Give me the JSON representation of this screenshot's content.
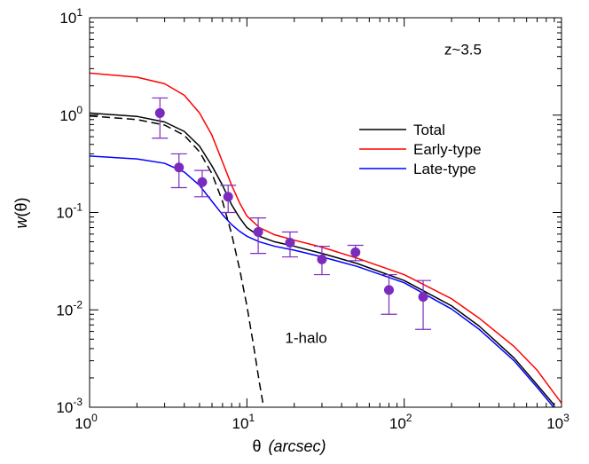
{
  "chart_data": {
    "type": "line",
    "title": "",
    "xlabel": {
      "symbol": "θ",
      "unit": "(arcsec)"
    },
    "ylabel": {
      "main": "w",
      "arg": "(θ)"
    },
    "xscale": "log",
    "yscale": "log",
    "xlim": [
      1,
      1000
    ],
    "ylim": [
      0.001,
      10
    ],
    "x_ticks": [
      {
        "value": 1,
        "base": "10",
        "exp": "0"
      },
      {
        "value": 10,
        "base": "10",
        "exp": "1"
      },
      {
        "value": 100,
        "base": "10",
        "exp": "2"
      },
      {
        "value": 1000,
        "base": "10",
        "exp": "3"
      }
    ],
    "y_ticks": [
      {
        "value": 0.001,
        "base": "10",
        "exp": "-3"
      },
      {
        "value": 0.01,
        "base": "10",
        "exp": "-2"
      },
      {
        "value": 0.1,
        "base": "10",
        "exp": "-1"
      },
      {
        "value": 1,
        "base": "10",
        "exp": "0"
      },
      {
        "value": 10,
        "base": "10",
        "exp": "1"
      }
    ],
    "grid": false,
    "legend_position": "top-right",
    "annotations": [
      {
        "text": "z~3.5",
        "x": 180,
        "y": 4.2
      },
      {
        "text": "1-halo",
        "x": 17.5,
        "y": 0.0046
      }
    ],
    "series": [
      {
        "name": "Total",
        "color": "#000000",
        "style": "solid",
        "x": [
          1,
          2,
          3,
          4,
          5,
          6,
          7,
          8,
          9,
          10,
          12,
          15,
          20,
          30,
          50,
          100,
          200,
          300,
          500,
          700,
          900
        ],
        "y": [
          1.05,
          0.97,
          0.85,
          0.68,
          0.48,
          0.3,
          0.19,
          0.12,
          0.088,
          0.07,
          0.057,
          0.05,
          0.045,
          0.038,
          0.03,
          0.02,
          0.011,
          0.0068,
          0.0032,
          0.0017,
          0.00105
        ]
      },
      {
        "name": "Early-type",
        "color": "#ff0000",
        "style": "solid",
        "x": [
          1,
          2,
          3,
          4,
          5,
          6,
          7,
          8,
          9,
          10,
          12,
          15,
          20,
          30,
          50,
          100,
          200,
          300,
          500,
          700,
          1000
        ],
        "y": [
          2.7,
          2.45,
          2.1,
          1.6,
          1.05,
          0.62,
          0.33,
          0.19,
          0.125,
          0.092,
          0.07,
          0.059,
          0.052,
          0.044,
          0.034,
          0.023,
          0.013,
          0.0082,
          0.0042,
          0.0024,
          0.0011
        ]
      },
      {
        "name": "Late-type",
        "color": "#0000ff",
        "style": "solid",
        "x": [
          1,
          2,
          3,
          4,
          5,
          6,
          7,
          8,
          9,
          10,
          12,
          15,
          20,
          30,
          50,
          100,
          200,
          300,
          500,
          700,
          900
        ],
        "y": [
          0.38,
          0.355,
          0.32,
          0.26,
          0.19,
          0.13,
          0.095,
          0.075,
          0.064,
          0.057,
          0.05,
          0.045,
          0.041,
          0.035,
          0.028,
          0.019,
          0.0102,
          0.0063,
          0.003,
          0.0016,
          0.00098
        ]
      },
      {
        "name": "1-halo",
        "color": "#000000",
        "style": "dashed",
        "x": [
          1,
          2,
          3,
          4,
          5,
          6,
          7,
          8,
          9,
          10,
          11,
          12,
          13
        ],
        "y": [
          0.98,
          0.9,
          0.79,
          0.62,
          0.42,
          0.25,
          0.13,
          0.06,
          0.026,
          0.011,
          0.0044,
          0.0018,
          0.00085
        ]
      }
    ],
    "points": {
      "color": "#7b2cbf",
      "marker": "circle",
      "x": [
        2.8,
        3.7,
        5.2,
        7.6,
        11.8,
        18.8,
        30,
        49,
        80,
        132
      ],
      "y": [
        1.05,
        0.29,
        0.205,
        0.145,
        0.063,
        0.049,
        0.033,
        0.039,
        0.016,
        0.0136
      ],
      "err_low": [
        0.58,
        0.18,
        0.145,
        0.1,
        0.038,
        0.035,
        0.023,
        0.032,
        0.009,
        0.0063
      ],
      "err_high": [
        1.5,
        0.4,
        0.27,
        0.19,
        0.088,
        0.063,
        0.045,
        0.046,
        0.023,
        0.02
      ]
    }
  }
}
